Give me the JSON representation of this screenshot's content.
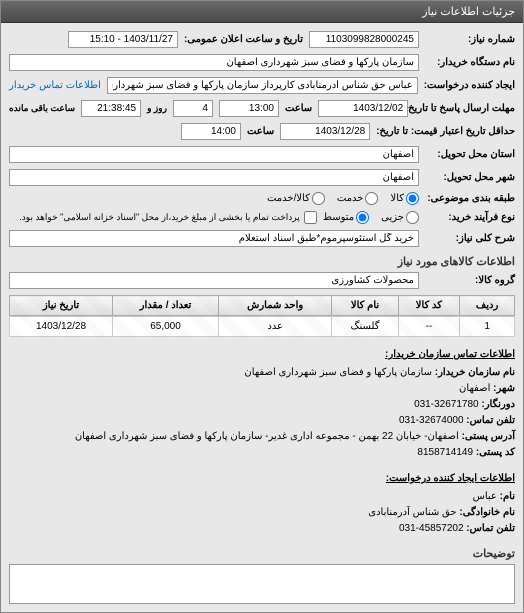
{
  "panel_title": "جزئیات اطلاعات نیاز",
  "fields": {
    "need_number_label": "شماره نیاز:",
    "need_number": "1103099828000245",
    "announce_label": "تاریخ و ساعت اعلان عمومی:",
    "announce_value": "1403/11/27 - 15:10",
    "buyer_org_label": "نام دستگاه خریدار:",
    "buyer_org": "سازمان پارکها و فضای سبز شهرداری اصفهان",
    "requester_label": "ایجاد کننده درخواست:",
    "requester": "عباس حق شناس آدرمنابادی کارپرداز سازمان پارکها و فضای سبز شهرداری اص",
    "contact_info_link": "اطلاعات تماس خریدار",
    "deadline_label": "مهلت ارسال پاسخ تا تاریخ:",
    "deadline_date": "1403/12/02",
    "deadline_time_label": "ساعت",
    "deadline_time": "13:00",
    "days_label": "روز و",
    "days_value": "4",
    "remain_label": "ساعت باقی مانده",
    "remain_value": "21:38:45",
    "min_expiry_label": "حداقل تاریخ اعتبار قیمت:  تا تاریخ:",
    "min_expiry_date": "1403/12/28",
    "min_expiry_time": "14:00",
    "province_label": "استان محل تحویل:",
    "province": "اصفهان",
    "city_label": "شهر محل تحویل:",
    "city": "اصفهان",
    "category_label": "طبقه بندی موضوعی:",
    "cat_goods": "کالا",
    "cat_service": "خدمت",
    "cat_goods_service": "کالا/خدمت",
    "process_label": "نوع فرآیند خرید:",
    "proc_small": "جزیی",
    "proc_medium": "متوسط",
    "payment_note": "پرداخت تمام یا بخشی از مبلغ خرید،از محل \"اسناد خزانه اسلامی\" خواهد بود.",
    "need_desc_label": "شرح کلی نیاز:",
    "need_desc": "خرید گل استئوسپرموم*طبق اسناد استعلام"
  },
  "goods_section": {
    "title": "اطلاعات کالاهای مورد نیاز",
    "group_label": "گروه کالا:",
    "group_value": "محصولات کشاورزی",
    "columns": [
      "ردیف",
      "کد کالا",
      "نام کالا",
      "واحد شمارش",
      "تعداد / مقدار",
      "تاریخ نیاز"
    ],
    "rows": [
      [
        "1",
        "--",
        "گلسنگ",
        "عدد",
        "65,000",
        "1403/12/28"
      ]
    ]
  },
  "buyer_contact": {
    "heading": "اطلاعات تماس سازمان خریدار:",
    "org_label": "نام سازمان خریدار:",
    "org": "سازمان پارکها و فضای سبز شهرداری اصفهان",
    "city_label": "شهر:",
    "city": "اصفهان",
    "fax_label": "دورنگار:",
    "fax": "32671780-031",
    "phone_label": "تلفن تماس:",
    "phone": "32674000-031",
    "postal_label": "آدرس پستی:",
    "postal": "اصفهان- خیابان 22 بهمن - مجموعه اداری غدیر- سازمان پارکها و فضای سبز شهرداری اصفهان",
    "zip_label": "کد پستی:",
    "zip": "8158714149"
  },
  "requester_contact": {
    "heading": "اطلاعات ایجاد کننده درخواست:",
    "name_label": "نام:",
    "name": "عباس",
    "family_label": "نام خانوادگی:",
    "family": "حق شناس آدرمنابادی",
    "phone_label": "تلفن تماس:",
    "phone": "45857202-031"
  },
  "description": {
    "title": "توضیحات"
  }
}
